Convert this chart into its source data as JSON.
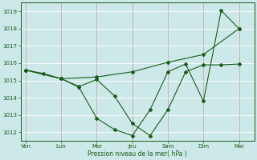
{
  "xlabel": "Pression niveau de la mer( hPa )",
  "bg_color": "#cce8e8",
  "grid_color_h": "#ffffff",
  "grid_color_v": "#c8a8a8",
  "line_color": "#1a5c1a",
  "ylim": [
    1011.5,
    1019.5
  ],
  "yticks": [
    1012,
    1013,
    1014,
    1015,
    1016,
    1017,
    1018,
    1019
  ],
  "day_labels": [
    "Ven",
    "Lun",
    "Mer",
    "Jeu",
    "Sam",
    "Dim",
    "Mar"
  ],
  "day_positions": [
    0,
    14,
    28,
    42,
    56,
    70,
    84
  ],
  "xlim": [
    -2,
    90
  ],
  "series1_x": [
    0,
    7,
    14,
    21,
    28,
    35,
    42,
    49,
    56,
    63,
    70,
    77,
    84
  ],
  "series1_y": [
    1015.6,
    1015.4,
    1015.1,
    1014.65,
    1015.05,
    1014.1,
    1012.5,
    1011.8,
    1013.3,
    1015.5,
    1015.9,
    1015.9,
    1015.95
  ],
  "series2_x": [
    0,
    14,
    21,
    28,
    35,
    42,
    49,
    56,
    63,
    70,
    77,
    84
  ],
  "series2_y": [
    1015.6,
    1015.1,
    1014.6,
    1012.8,
    1012.15,
    1011.8,
    1013.3,
    1015.5,
    1015.95,
    1013.8,
    1019.05,
    1018.0
  ],
  "series3_x": [
    0,
    14,
    28,
    42,
    56,
    70,
    84
  ],
  "series3_y": [
    1015.6,
    1015.1,
    1015.2,
    1015.5,
    1016.05,
    1016.5,
    1018.0
  ],
  "marker_style": "D",
  "marker_size": 2.0,
  "line_width": 0.8
}
